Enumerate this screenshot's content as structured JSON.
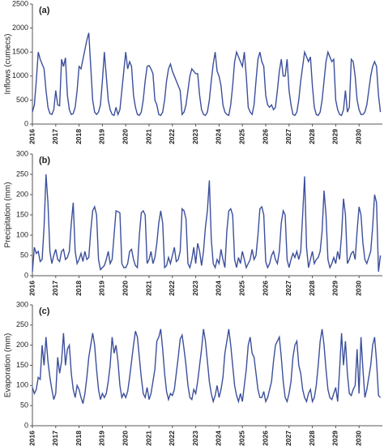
{
  "chart_data": [
    {
      "type": "line",
      "title": "(a)",
      "y_label": "Inflows (cumecs)",
      "color": "#3c4f9c",
      "categories": [
        "2016",
        null,
        null,
        null,
        null,
        null,
        null,
        null,
        null,
        null,
        null,
        null,
        "2017",
        null,
        null,
        null,
        null,
        null,
        null,
        null,
        null,
        null,
        null,
        null,
        "2018",
        null,
        null,
        null,
        null,
        null,
        null,
        null,
        null,
        null,
        null,
        null,
        "2019",
        null,
        null,
        null,
        null,
        null,
        null,
        null,
        null,
        null,
        null,
        null,
        "2020",
        null,
        null,
        null,
        null,
        null,
        null,
        null,
        null,
        null,
        null,
        null,
        "2021",
        null,
        null,
        null,
        null,
        null,
        null,
        null,
        null,
        null,
        null,
        null,
        "2022",
        null,
        null,
        null,
        null,
        null,
        null,
        null,
        null,
        null,
        null,
        null,
        "2023",
        null,
        null,
        null,
        null,
        null,
        null,
        null,
        null,
        null,
        null,
        null,
        "2024",
        null,
        null,
        null,
        null,
        null,
        null,
        null,
        null,
        null,
        null,
        null,
        "2025",
        null,
        null,
        null,
        null,
        null,
        null,
        null,
        null,
        null,
        null,
        null,
        "2026",
        null,
        null,
        null,
        null,
        null,
        null,
        null,
        null,
        null,
        null,
        null,
        "2027",
        null,
        null,
        null,
        null,
        null,
        null,
        null,
        null,
        null,
        null,
        null,
        "2028",
        null,
        null,
        null,
        null,
        null,
        null,
        null,
        null,
        null,
        null,
        null,
        "2029",
        null,
        null,
        null,
        null,
        null,
        null,
        null,
        null,
        null,
        null,
        null,
        "2030",
        null,
        null,
        null,
        null,
        null,
        null,
        null,
        null,
        null,
        null,
        null
      ],
      "values": [
        250,
        400,
        900,
        1500,
        1350,
        1250,
        1150,
        700,
        350,
        220,
        200,
        300,
        700,
        400,
        380,
        1350,
        1200,
        1380,
        600,
        300,
        200,
        220,
        350,
        700,
        1200,
        1150,
        1350,
        1550,
        1750,
        1900,
        1200,
        500,
        250,
        200,
        250,
        400,
        900,
        1500,
        1000,
        500,
        300,
        200,
        180,
        350,
        200,
        300,
        700,
        1100,
        1500,
        1150,
        1300,
        1200,
        600,
        350,
        200,
        180,
        250,
        500,
        900,
        1200,
        1220,
        1150,
        1050,
        500,
        400,
        200,
        180,
        250,
        500,
        900,
        1150,
        1250,
        1100,
        1000,
        900,
        800,
        700,
        200,
        250,
        400,
        700,
        1000,
        1150,
        1100,
        1050,
        1050,
        600,
        300,
        200,
        180,
        250,
        500,
        900,
        1250,
        1500,
        1100,
        1000,
        800,
        400,
        250,
        200,
        180,
        400,
        800,
        1300,
        1500,
        1400,
        1300,
        1200,
        1500,
        1000,
        350,
        250,
        200,
        400,
        900,
        1350,
        1500,
        1300,
        1200,
        600,
        400,
        350,
        400,
        300,
        350,
        700,
        1100,
        1350,
        1000,
        1000,
        1350,
        700,
        400,
        200,
        180,
        250,
        500,
        900,
        1200,
        1500,
        1400,
        1300,
        1400,
        800,
        350,
        200,
        180,
        250,
        500,
        900,
        1300,
        1500,
        1400,
        1300,
        1350,
        500,
        300,
        200,
        180,
        300,
        700,
        250,
        350,
        1350,
        1300,
        1000,
        500,
        300,
        200,
        200,
        250,
        400,
        700,
        1000,
        1200,
        1300,
        1200,
        600,
        250
      ],
      "ylim": [
        0,
        2500
      ],
      "yticks": [
        0,
        500,
        1000,
        1500,
        2000,
        2500
      ]
    },
    {
      "type": "line",
      "title": "(b)",
      "y_label": "Precipitation (mm)",
      "color": "#3c4f9c",
      "categories": [
        "2016",
        null,
        null,
        null,
        null,
        null,
        null,
        null,
        null,
        null,
        null,
        null,
        "2017",
        null,
        null,
        null,
        null,
        null,
        null,
        null,
        null,
        null,
        null,
        null,
        "2018",
        null,
        null,
        null,
        null,
        null,
        null,
        null,
        null,
        null,
        null,
        null,
        "2019",
        null,
        null,
        null,
        null,
        null,
        null,
        null,
        null,
        null,
        null,
        null,
        "2020",
        null,
        null,
        null,
        null,
        null,
        null,
        null,
        null,
        null,
        null,
        null,
        "2021",
        null,
        null,
        null,
        null,
        null,
        null,
        null,
        null,
        null,
        null,
        null,
        "2022",
        null,
        null,
        null,
        null,
        null,
        null,
        null,
        null,
        null,
        null,
        null,
        "2023",
        null,
        null,
        null,
        null,
        null,
        null,
        null,
        null,
        null,
        null,
        null,
        "2024",
        null,
        null,
        null,
        null,
        null,
        null,
        null,
        null,
        null,
        null,
        null,
        "2025",
        null,
        null,
        null,
        null,
        null,
        null,
        null,
        null,
        null,
        null,
        null,
        "2026",
        null,
        null,
        null,
        null,
        null,
        null,
        null,
        null,
        null,
        null,
        null,
        "2027",
        null,
        null,
        null,
        null,
        null,
        null,
        null,
        null,
        null,
        null,
        null,
        "2028",
        null,
        null,
        null,
        null,
        null,
        null,
        null,
        null,
        null,
        null,
        null,
        "2029",
        null,
        null,
        null,
        null,
        null,
        null,
        null,
        null,
        null,
        null,
        null,
        "2030",
        null,
        null,
        null,
        null,
        null,
        null,
        null,
        null,
        null,
        null,
        null
      ],
      "values": [
        10,
        70,
        55,
        60,
        35,
        40,
        120,
        250,
        180,
        60,
        30,
        50,
        65,
        40,
        35,
        60,
        65,
        40,
        45,
        60,
        130,
        180,
        60,
        30,
        40,
        55,
        35,
        60,
        40,
        45,
        110,
        160,
        170,
        150,
        40,
        15,
        20,
        25,
        40,
        60,
        30,
        40,
        100,
        160,
        158,
        155,
        30,
        20,
        20,
        30,
        60,
        65,
        40,
        25,
        20,
        100,
        155,
        160,
        150,
        30,
        40,
        60,
        30,
        45,
        80,
        130,
        160,
        130,
        20,
        25,
        45,
        30,
        50,
        70,
        35,
        40,
        60,
        165,
        160,
        140,
        30,
        20,
        40,
        70,
        30,
        80,
        60,
        25,
        60,
        120,
        160,
        235,
        90,
        30,
        20,
        40,
        30,
        65,
        40,
        20,
        110,
        160,
        165,
        150,
        40,
        20,
        45,
        30,
        60,
        40,
        20,
        30,
        40,
        65,
        40,
        50,
        100,
        165,
        170,
        150,
        35,
        20,
        30,
        50,
        60,
        40,
        30,
        60,
        130,
        160,
        150,
        40,
        20,
        40,
        55,
        45,
        60,
        40,
        60,
        150,
        245,
        70,
        20,
        40,
        60,
        30,
        40,
        45,
        60,
        110,
        210,
        150,
        40,
        20,
        30,
        45,
        30,
        60,
        40,
        100,
        190,
        150,
        30,
        40,
        55,
        60,
        40,
        110,
        170,
        150,
        80,
        40,
        30,
        45,
        60,
        120,
        200,
        180,
        10,
        50
      ],
      "ylim": [
        0,
        300
      ],
      "yticks": [
        0,
        50,
        100,
        150,
        200,
        250,
        300
      ]
    },
    {
      "type": "line",
      "title": "(c)",
      "y_label": "Evaporation (mm)",
      "color": "#3c4f9c",
      "categories": [
        "2016",
        null,
        null,
        null,
        null,
        null,
        null,
        null,
        null,
        null,
        null,
        null,
        "2017",
        null,
        null,
        null,
        null,
        null,
        null,
        null,
        null,
        null,
        null,
        null,
        "2018",
        null,
        null,
        null,
        null,
        null,
        null,
        null,
        null,
        null,
        null,
        null,
        "2019",
        null,
        null,
        null,
        null,
        null,
        null,
        null,
        null,
        null,
        null,
        null,
        "2020",
        null,
        null,
        null,
        null,
        null,
        null,
        null,
        null,
        null,
        null,
        null,
        "2021",
        null,
        null,
        null,
        null,
        null,
        null,
        null,
        null,
        null,
        null,
        null,
        "2022",
        null,
        null,
        null,
        null,
        null,
        null,
        null,
        null,
        null,
        null,
        null,
        "2023",
        null,
        null,
        null,
        null,
        null,
        null,
        null,
        null,
        null,
        null,
        null,
        "2024",
        null,
        null,
        null,
        null,
        null,
        null,
        null,
        null,
        null,
        null,
        null,
        "2025",
        null,
        null,
        null,
        null,
        null,
        null,
        null,
        null,
        null,
        null,
        null,
        "2026",
        null,
        null,
        null,
        null,
        null,
        null,
        null,
        null,
        null,
        null,
        null,
        "2027",
        null,
        null,
        null,
        null,
        null,
        null,
        null,
        null,
        null,
        null,
        null,
        "2028",
        null,
        null,
        null,
        null,
        null,
        null,
        null,
        null,
        null,
        null,
        null,
        "2029",
        null,
        null,
        null,
        null,
        null,
        null,
        null,
        null,
        null,
        null,
        null,
        "2030",
        null,
        null,
        null,
        null,
        null,
        null,
        null,
        null,
        null,
        null,
        null
      ],
      "values": [
        95,
        80,
        90,
        120,
        115,
        200,
        150,
        220,
        160,
        120,
        90,
        65,
        80,
        170,
        130,
        160,
        230,
        150,
        190,
        200,
        130,
        90,
        70,
        100,
        90,
        70,
        55,
        80,
        120,
        170,
        200,
        230,
        200,
        140,
        90,
        65,
        80,
        70,
        80,
        110,
        150,
        220,
        180,
        200,
        160,
        100,
        70,
        80,
        70,
        85,
        120,
        160,
        200,
        235,
        220,
        170,
        120,
        80,
        70,
        95,
        65,
        80,
        110,
        140,
        210,
        220,
        240,
        190,
        130,
        85,
        65,
        80,
        75,
        90,
        130,
        170,
        215,
        225,
        190,
        150,
        100,
        70,
        65,
        90,
        80,
        110,
        150,
        190,
        240,
        210,
        160,
        110,
        80,
        60,
        75,
        100,
        70,
        90,
        120,
        180,
        210,
        240,
        200,
        150,
        100,
        75,
        60,
        80,
        60,
        100,
        140,
        200,
        220,
        180,
        170,
        130,
        90,
        70,
        70,
        85,
        60,
        70,
        90,
        110,
        160,
        200,
        210,
        220,
        170,
        110,
        70,
        60,
        80,
        110,
        170,
        200,
        210,
        150,
        130,
        90,
        70,
        60,
        80,
        90,
        60,
        70,
        100,
        150,
        210,
        240,
        200,
        140,
        90,
        70,
        65,
        80,
        95,
        60,
        140,
        230,
        150,
        210,
        130,
        80,
        75,
        90,
        100,
        190,
        80,
        220,
        140,
        70,
        90,
        120,
        150,
        200,
        220,
        160,
        75,
        70
      ],
      "ylim": [
        0,
        300
      ],
      "yticks": [
        0,
        50,
        100,
        150,
        200,
        250,
        300
      ]
    }
  ]
}
